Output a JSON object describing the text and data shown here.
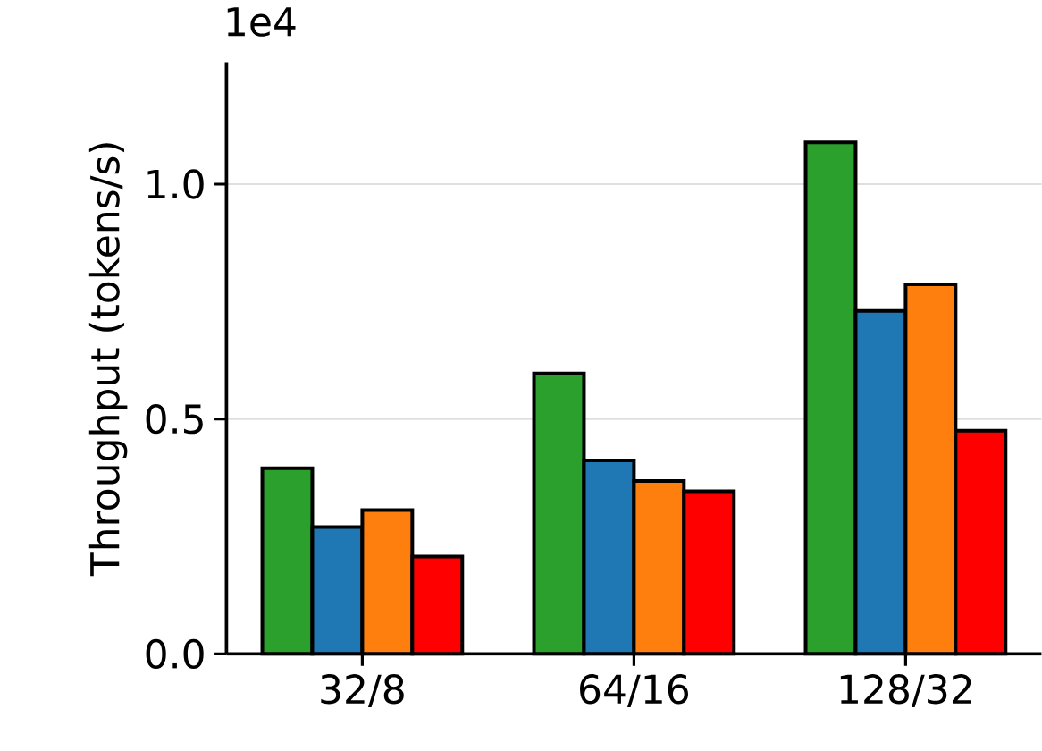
{
  "chart_data": {
    "type": "bar",
    "ylabel": "Throughput (tokens/s)",
    "categories": [
      "32/8",
      "64/16",
      "128/32"
    ],
    "series": [
      {
        "color": "#2ca02c",
        "values": [
          0.395,
          0.597,
          1.089
        ]
      },
      {
        "color": "#1f77b4",
        "values": [
          0.27,
          0.412,
          0.73
        ]
      },
      {
        "color": "#ff7f0e",
        "values": [
          0.306,
          0.368,
          0.787
        ]
      },
      {
        "color": "#ff0000",
        "values": [
          0.207,
          0.346,
          0.475
        ]
      }
    ],
    "ylim": [
      0,
      1.26
    ],
    "yticks": [
      {
        "value": 0,
        "label": "0.0"
      },
      0.5,
      {
        "value": 1,
        "label": "1.0"
      }
    ],
    "annotations": [
      "1e4"
    ],
    "grid": "y"
  }
}
